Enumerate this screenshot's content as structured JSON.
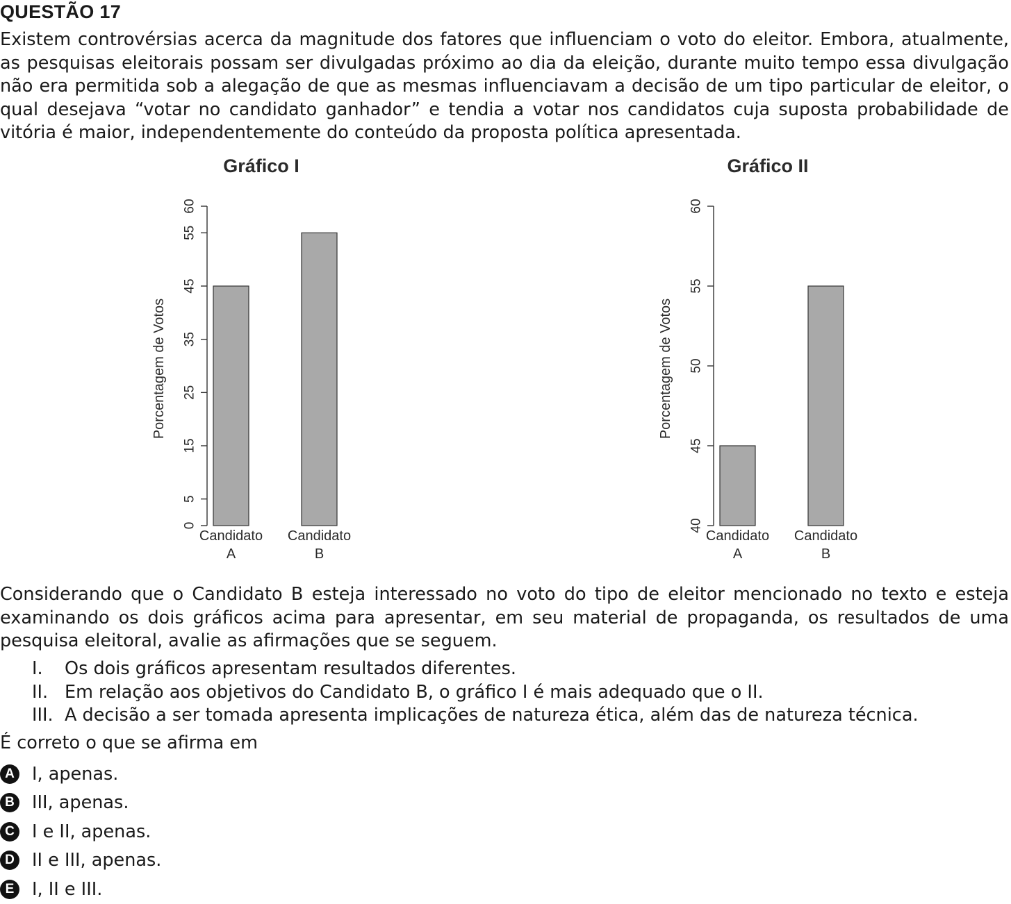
{
  "question": {
    "title": "QUESTÃO 17",
    "intro": "Existem controvérsias acerca da magnitude dos fatores que influenciam o voto do eleitor. Embora, atualmente, as pesquisas eleitorais possam ser divulgadas próximo ao dia da eleição, durante muito tempo essa divulgação não era permitida sob a alegação de que as mesmas influenciavam a decisão de um tipo particular de eleitor, o qual desejava “votar no candidato ganhador” e tendia a votar nos candidatos cuja suposta probabilidade de vitória é maior, independentemente do conteúdo da proposta política apresentada.",
    "context": "Considerando que o Candidato B esteja interessado no voto do tipo de eleitor mencionado no texto e esteja examinando os dois gráficos acima para apresentar, em seu material de propaganda, os resultados de uma pesquisa eleitoral, avalie as afirmações que se seguem.",
    "statements": [
      {
        "num": "I.",
        "text": "Os dois gráficos apresentam resultados diferentes."
      },
      {
        "num": "II.",
        "text": "Em relação aos objetivos do Candidato B, o gráfico I é mais adequado que o II."
      },
      {
        "num": "III.",
        "text": "A decisão a ser tomada apresenta implicações de natureza ética, além das de natureza técnica."
      }
    ],
    "prompt": "É correto o que se afirma em",
    "options": [
      {
        "letter": "A",
        "text": "I, apenas."
      },
      {
        "letter": "B",
        "text": "III, apenas."
      },
      {
        "letter": "C",
        "text": "I e II, apenas."
      },
      {
        "letter": "D",
        "text": "II e III, apenas."
      },
      {
        "letter": "E",
        "text": "I, II e III."
      }
    ]
  },
  "chart_data": [
    {
      "type": "bar",
      "title": "Gráfico I",
      "ylabel": "Porcentagem de Votos",
      "categories": [
        [
          "Candidato",
          "A"
        ],
        [
          "Candidato",
          "B"
        ]
      ],
      "values": [
        45,
        55
      ],
      "ylim": [
        0,
        60
      ],
      "yticks": [
        0,
        5,
        15,
        25,
        35,
        45,
        55,
        60
      ],
      "grid": false,
      "colors": {
        "bar": "#a9a9a9",
        "outline": "#333333"
      }
    },
    {
      "type": "bar",
      "title": "Gráfico II",
      "ylabel": "Porcentagem de Votos",
      "categories": [
        [
          "Candidato",
          "A"
        ],
        [
          "Candidato",
          "B"
        ]
      ],
      "values": [
        45,
        55
      ],
      "ylim": [
        40,
        60
      ],
      "yticks": [
        40,
        45,
        50,
        55,
        60
      ],
      "grid": false,
      "colors": {
        "bar": "#a9a9a9",
        "outline": "#333333"
      }
    }
  ]
}
